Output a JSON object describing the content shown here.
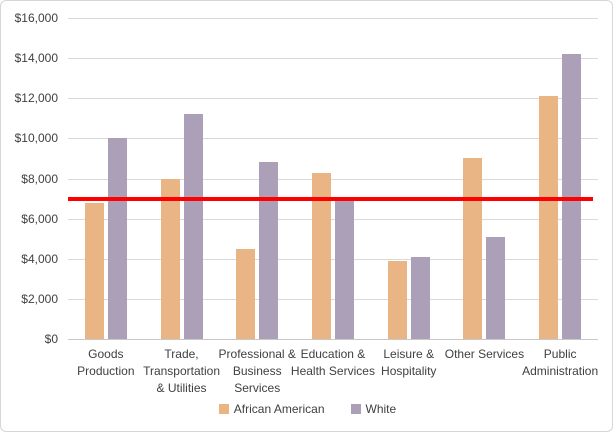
{
  "colors": {
    "african_american": "#EAB584",
    "white": "#ACA0B8",
    "reference_line": "#FF0000",
    "gridline": "#D9D9D9",
    "axis_line": "#C8C8C8",
    "text": "#404040",
    "border": "#D6D6D6",
    "background": "#FFFFFF"
  },
  "chart_data": {
    "type": "bar",
    "title": "",
    "categories": [
      "Goods Production",
      "Trade, Transportation & Utilities",
      "Professional & Business Services",
      "Education & Health Services",
      "Leisure & Hospitality",
      "Other Services",
      "Public Administration"
    ],
    "category_display_lines": [
      [
        "Goods",
        "Production"
      ],
      [
        "Trade,",
        "Transportation",
        "& Utilities"
      ],
      [
        "Professional &",
        "Business",
        "Services"
      ],
      [
        "Education &",
        "Health Services"
      ],
      [
        "Leisure &",
        "Hospitality"
      ],
      [
        "Other Services"
      ],
      [
        "Public",
        "Administration"
      ]
    ],
    "series": [
      {
        "name": "African American",
        "color_key": "african_american",
        "values": [
          6800,
          8000,
          4500,
          8300,
          3900,
          9000,
          12100
        ]
      },
      {
        "name": "White",
        "color_key": "white",
        "values": [
          10000,
          11200,
          8800,
          6900,
          4100,
          5100,
          14200
        ]
      }
    ],
    "reference_line": {
      "value": 7000,
      "color_key": "reference_line"
    },
    "y_axis": {
      "min": 0,
      "max": 16000,
      "step": 2000,
      "tick_format": "$#,##0",
      "tick_labels": [
        "$0",
        "$2,000",
        "$4,000",
        "$6,000",
        "$8,000",
        "$10,000",
        "$12,000",
        "$14,000",
        "$16,000"
      ]
    },
    "legend_position": "bottom",
    "grid": true,
    "xlabel": "",
    "ylabel": ""
  }
}
